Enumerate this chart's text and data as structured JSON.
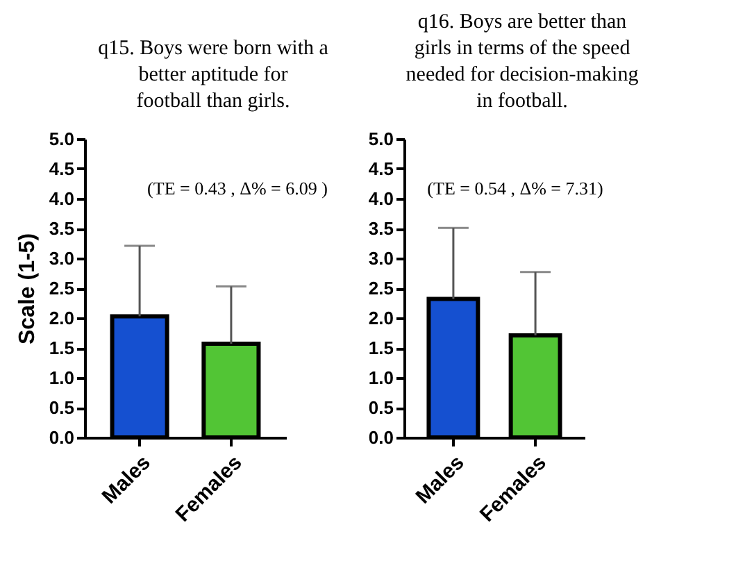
{
  "chart_data": [
    {
      "type": "bar",
      "title": "q15. Boys were born with a better aptitude for football than girls.",
      "ylabel": "Scale (1-5)",
      "categories": [
        "Males",
        "Females"
      ],
      "values": [
        2.03,
        1.57
      ],
      "colors": [
        "#1550d0",
        "#52c535"
      ],
      "errors": [
        [
          2.03,
          3.21
        ],
        [
          1.57,
          2.53
        ]
      ],
      "ylim": [
        0,
        5
      ],
      "yticks": [
        {
          "value": 0,
          "label": "0.0"
        },
        0.5,
        {
          "value": 1,
          "label": "1.0"
        },
        1.5,
        {
          "value": 2,
          "label": "2.0"
        },
        2.5,
        {
          "value": 3,
          "label": "3.0"
        },
        3.5,
        {
          "value": 4,
          "label": "4.0"
        },
        4.5,
        {
          "value": 5,
          "label": "5.0"
        }
      ],
      "annotations": [
        "(TE = 0.43 , Δ% = 6.09 )"
      ],
      "grid": false
    },
    {
      "type": "bar",
      "title": "q16. Boys are better than girls in terms of the speed needed for decision-making in football.",
      "categories": [
        "Males",
        "Females"
      ],
      "values": [
        2.32,
        1.71
      ],
      "colors": [
        "#1550d0",
        "#52c535"
      ],
      "errors": [
        [
          2.32,
          3.51
        ],
        [
          1.71,
          2.77
        ]
      ],
      "ylim": [
        0,
        5
      ],
      "yticks": [
        {
          "value": 0,
          "label": "0.0"
        },
        0.5,
        {
          "value": 1,
          "label": "1.0"
        },
        1.5,
        {
          "value": 2,
          "label": "2.0"
        },
        2.5,
        {
          "value": 3,
          "label": "3.0"
        },
        3.5,
        {
          "value": 4,
          "label": "4.0"
        },
        4.5,
        {
          "value": 5,
          "label": "5.0"
        }
      ],
      "annotations": [
        "(TE = 0.54 , Δ% = 7.31)"
      ],
      "grid": false
    }
  ]
}
